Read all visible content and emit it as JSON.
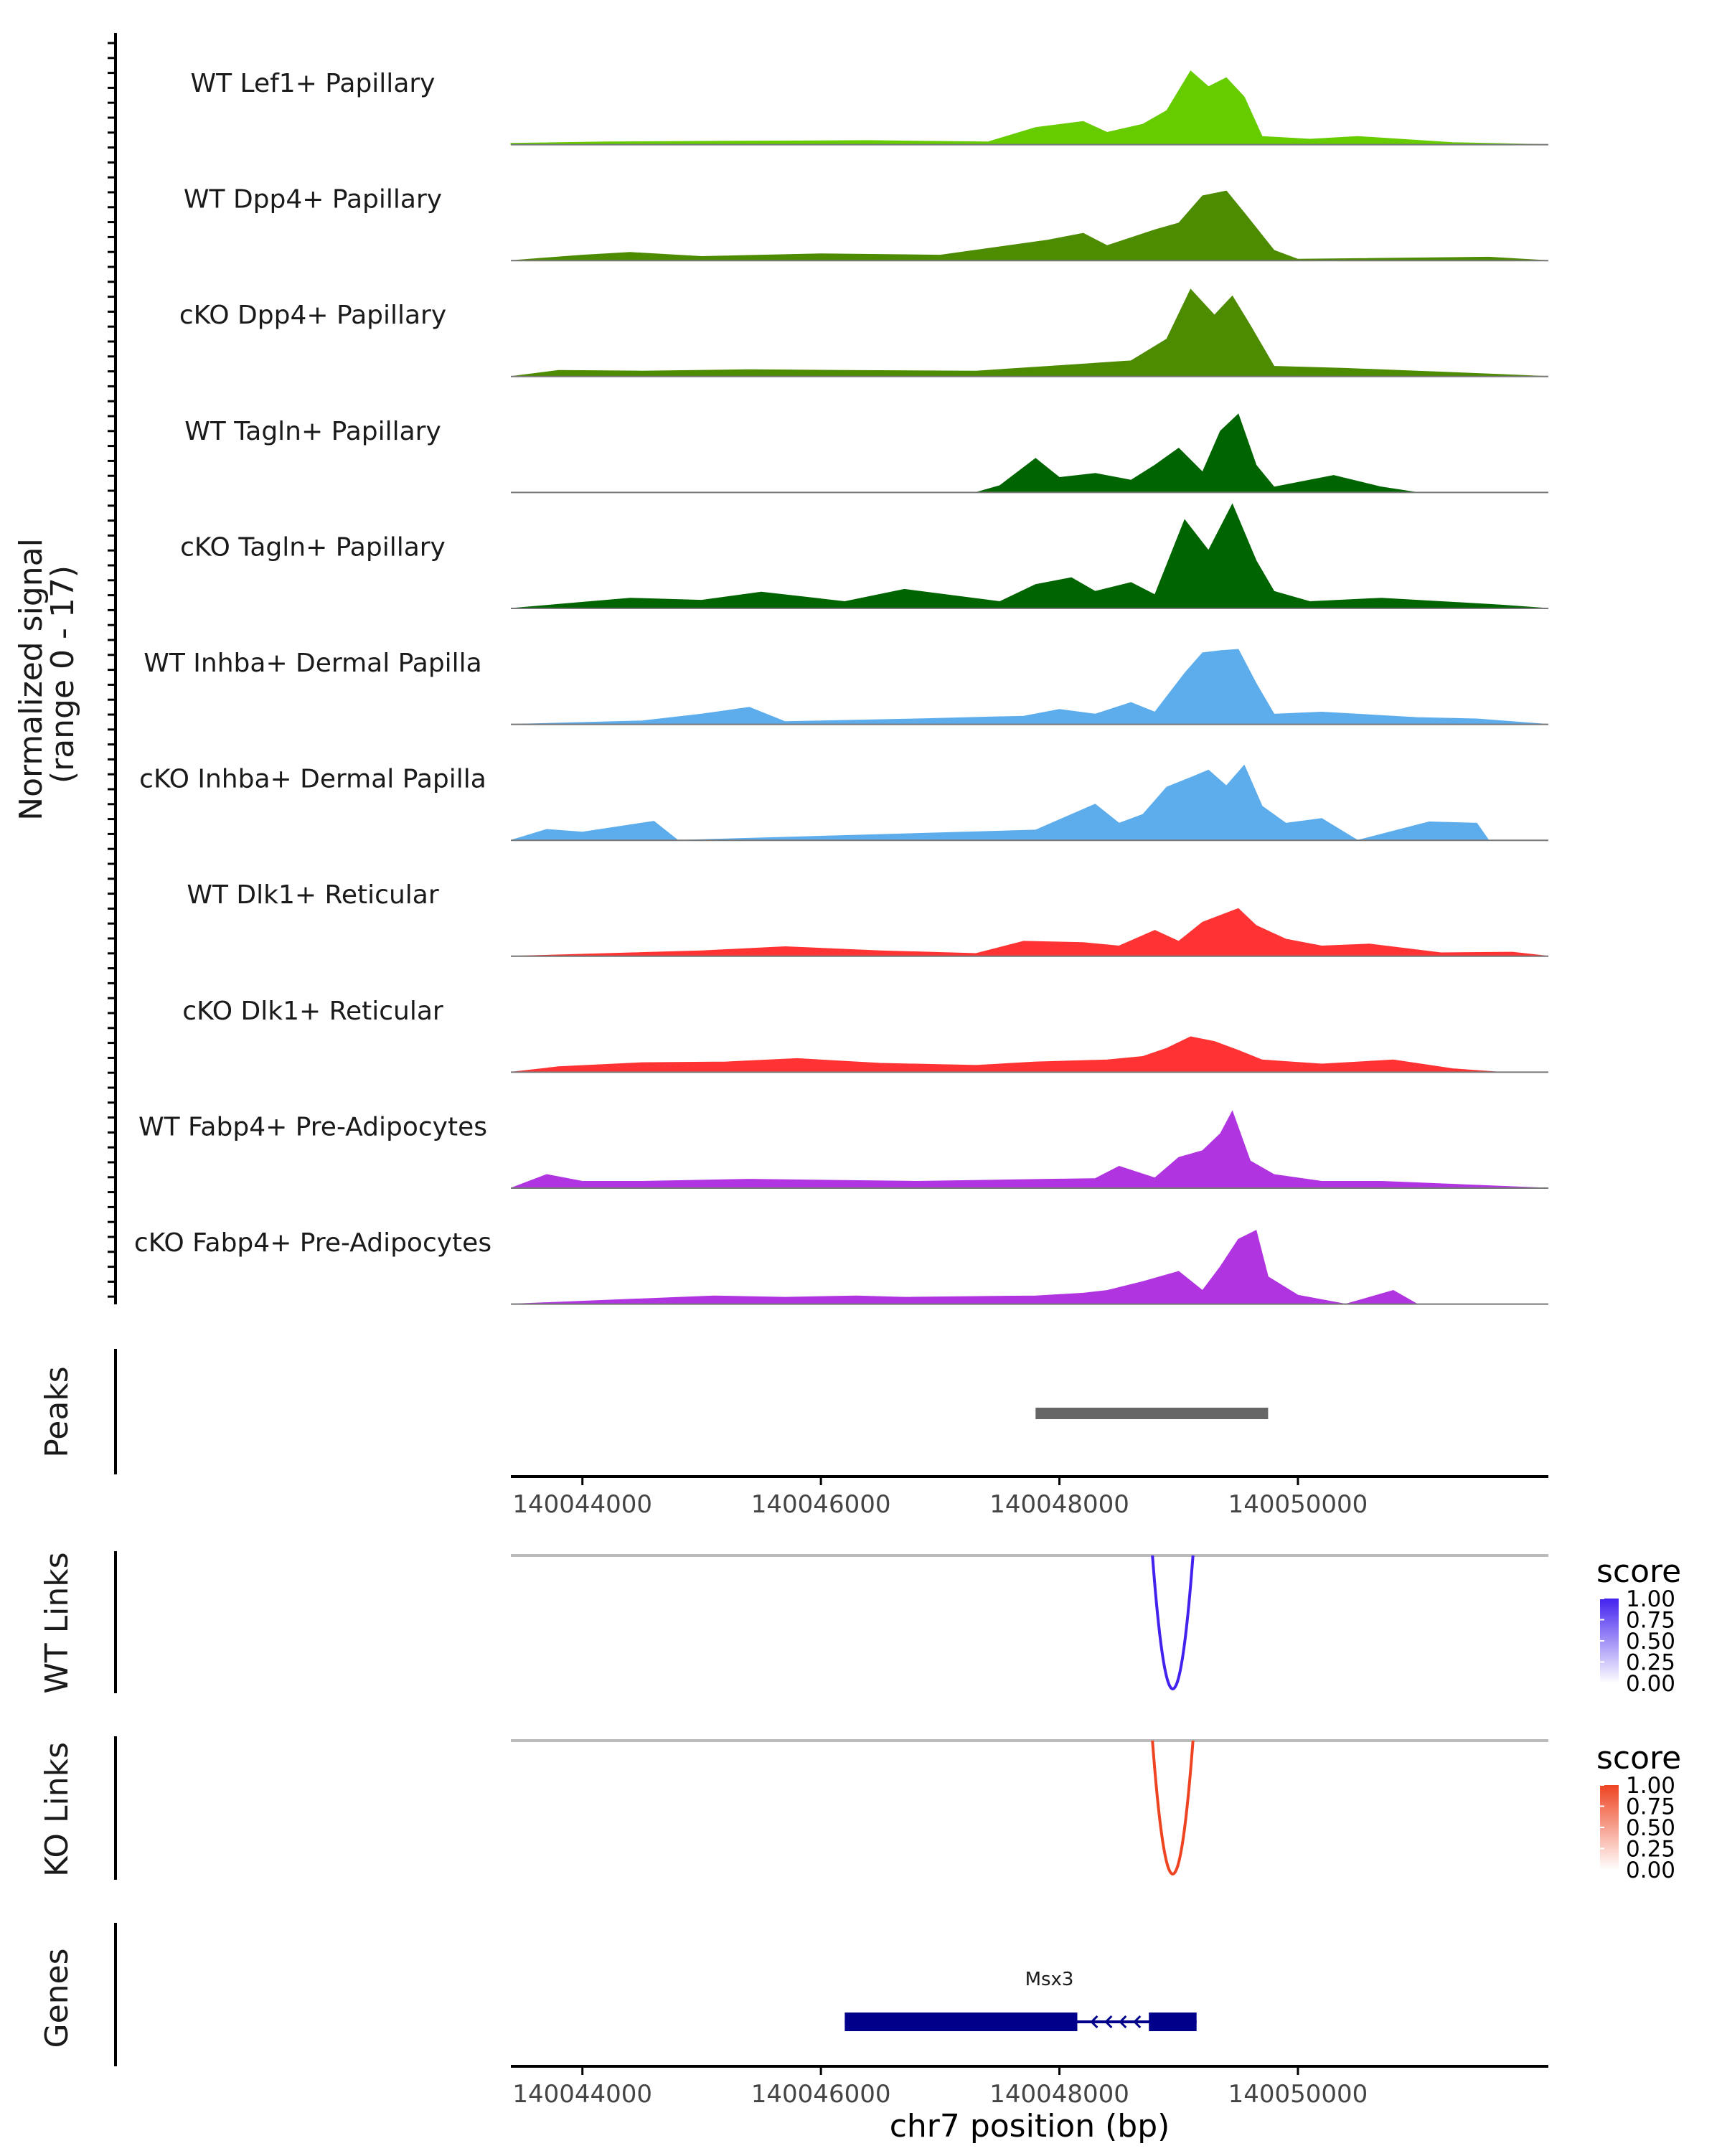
{
  "chart_data": {
    "type": "area",
    "title": "",
    "coverage": {
      "ylabel": "Normalized signal",
      "ylabel_range": "(range 0 - 17)",
      "ylim": [
        0,
        17
      ],
      "xlim": [
        140043400,
        140052100
      ],
      "tracks": [
        {
          "name": "WT Lef1+ Papillary",
          "color": "#66CC00",
          "points": [
            [
              140043400,
              0.2
            ],
            [
              140044200,
              0.4
            ],
            [
              140045200,
              0.5
            ],
            [
              140046400,
              0.6
            ],
            [
              140047400,
              0.4
            ],
            [
              140047800,
              2.5
            ],
            [
              140048200,
              3.4
            ],
            [
              140048400,
              1.8
            ],
            [
              140048700,
              3.0
            ],
            [
              140048900,
              5.0
            ],
            [
              140049100,
              10.8
            ],
            [
              140049250,
              8.5
            ],
            [
              140049400,
              9.8
            ],
            [
              140049550,
              7.0
            ],
            [
              140049700,
              1.2
            ],
            [
              140050100,
              0.8
            ],
            [
              140050500,
              1.2
            ],
            [
              140051300,
              0.3
            ],
            [
              140052100,
              0
            ]
          ]
        },
        {
          "name": "WT Dpp4+ Papillary",
          "color": "#4D8B00",
          "points": [
            [
              140043400,
              0
            ],
            [
              140044000,
              0.8
            ],
            [
              140044400,
              1.2
            ],
            [
              140045000,
              0.6
            ],
            [
              140046000,
              1.0
            ],
            [
              140047000,
              0.8
            ],
            [
              140047900,
              3.0
            ],
            [
              140048200,
              4.0
            ],
            [
              140048400,
              2.2
            ],
            [
              140048800,
              4.5
            ],
            [
              140049000,
              5.5
            ],
            [
              140049200,
              9.5
            ],
            [
              140049400,
              10.2
            ],
            [
              140049550,
              7.0
            ],
            [
              140049800,
              1.5
            ],
            [
              140050000,
              0.2
            ],
            [
              140051600,
              0.5
            ],
            [
              140052100,
              0
            ]
          ]
        },
        {
          "name": "cKO Dpp4+ Papillary",
          "color": "#4D8B00",
          "points": [
            [
              140043400,
              0
            ],
            [
              140043800,
              0.9
            ],
            [
              140044500,
              0.8
            ],
            [
              140045400,
              1.0
            ],
            [
              140046200,
              0.9
            ],
            [
              140047300,
              0.8
            ],
            [
              140048000,
              1.6
            ],
            [
              140048600,
              2.3
            ],
            [
              140048900,
              5.5
            ],
            [
              140049100,
              12.8
            ],
            [
              140049300,
              9.0
            ],
            [
              140049450,
              11.8
            ],
            [
              140049600,
              7.5
            ],
            [
              140049800,
              1.5
            ],
            [
              140050400,
              1.2
            ],
            [
              140051000,
              0.8
            ],
            [
              140051700,
              0.3
            ],
            [
              140052100,
              0
            ]
          ]
        },
        {
          "name": "WT Tagln+ Papillary",
          "color": "#006400",
          "points": [
            [
              140043400,
              0
            ],
            [
              140047300,
              0
            ],
            [
              140047500,
              1.0
            ],
            [
              140047800,
              5.0
            ],
            [
              140048000,
              2.2
            ],
            [
              140048300,
              2.8
            ],
            [
              140048600,
              1.8
            ],
            [
              140048800,
              4.0
            ],
            [
              140049000,
              6.5
            ],
            [
              140049200,
              3.0
            ],
            [
              140049350,
              9.0
            ],
            [
              140049500,
              11.5
            ],
            [
              140049650,
              4.0
            ],
            [
              140049800,
              0.8
            ],
            [
              140050300,
              2.5
            ],
            [
              140050700,
              0.8
            ],
            [
              140051000,
              0
            ],
            [
              140052100,
              0
            ]
          ]
        },
        {
          "name": "cKO Tagln+ Papillary",
          "color": "#006400",
          "points": [
            [
              140043400,
              0
            ],
            [
              140043800,
              0.6
            ],
            [
              140044400,
              1.5
            ],
            [
              140045000,
              1.2
            ],
            [
              140045500,
              2.4
            ],
            [
              140046200,
              1.0
            ],
            [
              140046700,
              2.8
            ],
            [
              140047500,
              1.0
            ],
            [
              140047800,
              3.5
            ],
            [
              140048100,
              4.5
            ],
            [
              140048300,
              2.5
            ],
            [
              140048600,
              3.8
            ],
            [
              140048800,
              2.0
            ],
            [
              140049050,
              13.0
            ],
            [
              140049250,
              8.5
            ],
            [
              140049450,
              15.3
            ],
            [
              140049650,
              7.0
            ],
            [
              140049800,
              2.5
            ],
            [
              140050100,
              1.0
            ],
            [
              140050700,
              1.5
            ],
            [
              140051700,
              0.5
            ],
            [
              140052100,
              0
            ]
          ]
        },
        {
          "name": "WT Inhba+ Dermal Papilla",
          "color": "#5DADEC",
          "points": [
            [
              140043400,
              0
            ],
            [
              140044500,
              0.5
            ],
            [
              140045000,
              1.5
            ],
            [
              140045400,
              2.5
            ],
            [
              140045700,
              0.4
            ],
            [
              140046800,
              0.8
            ],
            [
              140047700,
              1.2
            ],
            [
              140048000,
              2.2
            ],
            [
              140048300,
              1.5
            ],
            [
              140048600,
              3.2
            ],
            [
              140048800,
              1.8
            ],
            [
              140049050,
              7.5
            ],
            [
              140049200,
              10.5
            ],
            [
              140049350,
              10.8
            ],
            [
              140049500,
              11.0
            ],
            [
              140049650,
              6.0
            ],
            [
              140049800,
              1.5
            ],
            [
              140050200,
              1.8
            ],
            [
              140051000,
              1.0
            ],
            [
              140051500,
              0.8
            ],
            [
              140052100,
              0
            ]
          ]
        },
        {
          "name": "cKO Inhba+ Dermal Papilla",
          "color": "#5DADEC",
          "points": [
            [
              140043400,
              0
            ],
            [
              140043700,
              1.6
            ],
            [
              140044000,
              1.2
            ],
            [
              140044600,
              2.8
            ],
            [
              140044800,
              0
            ],
            [
              140047800,
              1.5
            ],
            [
              140048300,
              5.3
            ],
            [
              140048500,
              2.5
            ],
            [
              140048700,
              3.8
            ],
            [
              140048900,
              7.8
            ],
            [
              140049100,
              9.2
            ],
            [
              140049250,
              10.3
            ],
            [
              140049400,
              8.0
            ],
            [
              140049550,
              11.0
            ],
            [
              140049700,
              5.0
            ],
            [
              140049900,
              2.5
            ],
            [
              140050200,
              3.2
            ],
            [
              140050500,
              0
            ],
            [
              140051100,
              2.7
            ],
            [
              140051500,
              2.5
            ],
            [
              140051600,
              0
            ],
            [
              140052100,
              0
            ]
          ]
        },
        {
          "name": "WT Dlk1+ Reticular",
          "color": "#FF3333",
          "points": [
            [
              140043400,
              0
            ],
            [
              140044200,
              0.4
            ],
            [
              140045000,
              0.8
            ],
            [
              140045700,
              1.4
            ],
            [
              140046500,
              0.8
            ],
            [
              140047300,
              0.4
            ],
            [
              140047700,
              2.2
            ],
            [
              140048200,
              2.0
            ],
            [
              140048500,
              1.5
            ],
            [
              140048800,
              3.8
            ],
            [
              140049000,
              2.2
            ],
            [
              140049200,
              5.0
            ],
            [
              140049350,
              6.0
            ],
            [
              140049500,
              7.0
            ],
            [
              140049650,
              4.5
            ],
            [
              140049900,
              2.5
            ],
            [
              140050200,
              1.5
            ],
            [
              140050600,
              1.8
            ],
            [
              140051200,
              0.5
            ],
            [
              140051800,
              0.6
            ],
            [
              140052100,
              0
            ]
          ]
        },
        {
          "name": "cKO Dlk1+ Reticular",
          "color": "#FF3333",
          "points": [
            [
              140043400,
              0
            ],
            [
              140043800,
              0.8
            ],
            [
              140044500,
              1.4
            ],
            [
              140045200,
              1.5
            ],
            [
              140045800,
              2.0
            ],
            [
              140046500,
              1.3
            ],
            [
              140047300,
              1.0
            ],
            [
              140047800,
              1.5
            ],
            [
              140048400,
              1.8
            ],
            [
              140048700,
              2.3
            ],
            [
              140048900,
              3.5
            ],
            [
              140049100,
              5.2
            ],
            [
              140049300,
              4.5
            ],
            [
              140049500,
              3.2
            ],
            [
              140049700,
              1.8
            ],
            [
              140050200,
              1.2
            ],
            [
              140050800,
              1.8
            ],
            [
              140051300,
              0.5
            ],
            [
              140051700,
              0
            ],
            [
              140052100,
              0
            ]
          ]
        },
        {
          "name": "WT Fabp4+ Pre-Adipocytes",
          "color": "#B034E0",
          "points": [
            [
              140043400,
              0
            ],
            [
              140043700,
              2.0
            ],
            [
              140044000,
              1.0
            ],
            [
              140044500,
              1.0
            ],
            [
              140045400,
              1.3
            ],
            [
              140046800,
              1.0
            ],
            [
              140047900,
              1.3
            ],
            [
              140048300,
              1.4
            ],
            [
              140048500,
              3.2
            ],
            [
              140048800,
              1.5
            ],
            [
              140049000,
              4.5
            ],
            [
              140049200,
              5.5
            ],
            [
              140049350,
              8.0
            ],
            [
              140049450,
              11.3
            ],
            [
              140049600,
              4.0
            ],
            [
              140049800,
              2.0
            ],
            [
              140050200,
              1.0
            ],
            [
              140050700,
              1.0
            ],
            [
              140052100,
              0
            ]
          ]
        },
        {
          "name": "cKO Fabp4+ Pre-Adipocytes",
          "color": "#B034E0",
          "points": [
            [
              140043400,
              0
            ],
            [
              140045100,
              1.2
            ],
            [
              140045700,
              1.0
            ],
            [
              140046300,
              1.2
            ],
            [
              140046700,
              1.0
            ],
            [
              140047800,
              1.2
            ],
            [
              140048200,
              1.6
            ],
            [
              140048400,
              2.0
            ],
            [
              140048700,
              3.3
            ],
            [
              140049000,
              4.8
            ],
            [
              140049200,
              2.0
            ],
            [
              140049350,
              5.5
            ],
            [
              140049500,
              9.5
            ],
            [
              140049650,
              10.8
            ],
            [
              140049750,
              4.0
            ],
            [
              140050000,
              1.3
            ],
            [
              140050400,
              0
            ],
            [
              140050800,
              2.0
            ],
            [
              140051000,
              0
            ],
            [
              140052100,
              0
            ]
          ]
        }
      ]
    },
    "peaks": {
      "label": "Peaks",
      "regions": [
        [
          140047800,
          140049750
        ]
      ]
    },
    "x_axis": {
      "ticks": [
        140044000,
        140046000,
        140048000,
        140050000
      ],
      "tick_labels": [
        "140044000",
        "140046000",
        "140048000",
        "140050000"
      ],
      "xlabel": "chr7 position (bp)"
    },
    "links": [
      {
        "label": "WT Links",
        "color": "#4422EE",
        "start": 140048780,
        "end": 140049120,
        "score": 1.0,
        "legend": {
          "title": "score",
          "ticks": [
            "1.00",
            "0.75",
            "0.50",
            "0.25",
            "0.00"
          ]
        }
      },
      {
        "label": "KO Links",
        "color": "#EE4422",
        "start": 140048780,
        "end": 140049120,
        "score": 1.0,
        "legend": {
          "title": "score",
          "ticks": [
            "1.00",
            "0.75",
            "0.50",
            "0.25",
            "0.00"
          ]
        }
      }
    ],
    "genes": {
      "label": "Genes",
      "color": "#00008B",
      "items": [
        {
          "name": "Msx3",
          "strand": "-",
          "start": 140046200,
          "end": 140049150,
          "exons": [
            [
              140046200,
              140048150
            ],
            [
              140048750,
              140049150
            ]
          ]
        }
      ]
    }
  }
}
